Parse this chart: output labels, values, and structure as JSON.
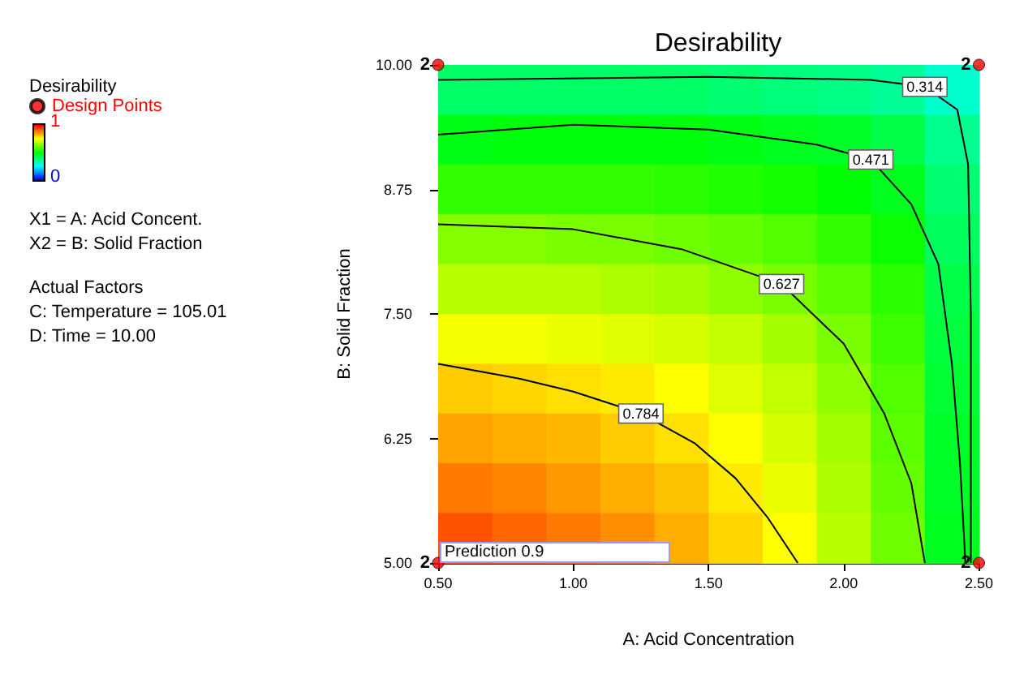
{
  "chart_data": {
    "type": "heatmap",
    "title": "Desirability",
    "xlabel": "A: Acid Concentration",
    "ylabel": "B: Solid Fraction",
    "clabel": "Desirability",
    "x": [
      0.6,
      0.8,
      1.0,
      1.2,
      1.4,
      1.6,
      1.8,
      2.0,
      2.2,
      2.4
    ],
    "cells": [
      [
        0.4,
        0.4,
        0.4,
        0.4,
        0.4,
        0.39,
        0.38,
        0.37,
        0.35,
        0.3
      ],
      [
        0.48,
        0.49,
        0.49,
        0.49,
        0.49,
        0.48,
        0.47,
        0.46,
        0.43,
        0.36
      ],
      [
        0.55,
        0.55,
        0.55,
        0.55,
        0.54,
        0.53,
        0.52,
        0.5,
        0.47,
        0.39
      ],
      [
        0.63,
        0.63,
        0.62,
        0.62,
        0.61,
        0.6,
        0.58,
        0.55,
        0.51,
        0.41
      ],
      [
        0.68,
        0.68,
        0.68,
        0.67,
        0.66,
        0.64,
        0.62,
        0.59,
        0.54,
        0.43
      ],
      [
        0.74,
        0.74,
        0.73,
        0.72,
        0.71,
        0.69,
        0.66,
        0.62,
        0.56,
        0.44
      ],
      [
        0.8,
        0.79,
        0.78,
        0.77,
        0.75,
        0.72,
        0.69,
        0.64,
        0.58,
        0.45
      ],
      [
        0.84,
        0.83,
        0.82,
        0.8,
        0.78,
        0.75,
        0.71,
        0.66,
        0.59,
        0.46
      ],
      [
        0.88,
        0.87,
        0.85,
        0.83,
        0.81,
        0.77,
        0.73,
        0.67,
        0.6,
        0.46
      ],
      [
        0.92,
        0.9,
        0.88,
        0.86,
        0.83,
        0.79,
        0.75,
        0.68,
        0.61,
        0.47
      ]
    ],
    "clim": [
      0,
      1
    ],
    "cticks": [
      0,
      1
    ],
    "xlim": [
      0.5,
      2.5
    ],
    "xticks": [
      {
        "value": 0.5,
        "label": "0.50"
      },
      {
        "value": 1,
        "label": "1.00"
      },
      {
        "value": 1.5,
        "label": "1.50"
      },
      {
        "value": 2,
        "label": "2.00"
      },
      {
        "value": 2.5,
        "label": "2.50"
      }
    ],
    "ylim": [
      5,
      10
    ],
    "yticks": [
      {
        "value": 5,
        "label": "5.00"
      },
      {
        "value": 6.25,
        "label": "6.25"
      },
      {
        "value": 7.5,
        "label": "7.50"
      },
      {
        "value": 8.75,
        "label": "8.75"
      },
      {
        "value": 10,
        "label": "10.00"
      }
    ],
    "series": [
      {
        "type": "line",
        "color": "#000000",
        "marker": "none",
        "x": [
          0.5,
          0.8,
          1.0,
          1.25,
          1.45,
          1.6,
          1.72,
          1.83
        ],
        "values": [
          7.0,
          6.85,
          6.72,
          6.5,
          6.2,
          5.85,
          5.45,
          5.0
        ]
      },
      {
        "type": "line",
        "color": "#000000",
        "marker": "none",
        "x": [
          0.5,
          1.0,
          1.4,
          1.77,
          2.0,
          2.15,
          2.25,
          2.3
        ],
        "values": [
          8.4,
          8.35,
          8.15,
          7.8,
          7.2,
          6.5,
          5.8,
          5.0
        ]
      },
      {
        "type": "line",
        "color": "#000000",
        "marker": "none",
        "x": [
          0.5,
          1.0,
          1.5,
          1.9,
          2.1,
          2.25,
          2.35,
          2.4,
          2.43,
          2.45
        ],
        "values": [
          9.3,
          9.4,
          9.35,
          9.2,
          9.05,
          8.6,
          8.0,
          7.0,
          6.0,
          5.0
        ]
      },
      {
        "type": "line",
        "color": "#000000",
        "marker": "none",
        "x": [
          0.5,
          1.5,
          2.1,
          2.3,
          2.42,
          2.46,
          2.47,
          2.47
        ],
        "values": [
          9.85,
          9.88,
          9.85,
          9.78,
          9.55,
          9.0,
          7.5,
          5.0
        ]
      },
      {
        "type": "scatter",
        "name": "Design Points",
        "color": "#ff0000",
        "marker": "circle",
        "x": [
          0.5,
          0.5,
          2.5,
          2.5
        ],
        "values": [
          10,
          5,
          10,
          5
        ]
      }
    ],
    "legend": "left",
    "annotations": [
      "X1 = A: Acid Concent.",
      "X2 = B: Solid Fraction",
      "Actual Factors",
      "C: Temperature = 105.01",
      "D: Time = 10.00",
      "Prediction 0.9",
      {
        "text": "0.314",
        "x": 2.3,
        "y": 9.78
      },
      {
        "text": "0.471",
        "x": 2.1,
        "y": 9.05
      },
      {
        "text": "0.627",
        "x": 1.77,
        "y": 7.8
      },
      {
        "text": "0.784",
        "x": 1.25,
        "y": 6.5
      },
      {
        "text": "2",
        "x": 0.5,
        "y": 10
      },
      {
        "text": "2",
        "x": 0.5,
        "y": 5
      },
      {
        "text": "2",
        "x": 2.5,
        "y": 10
      },
      {
        "text": "2",
        "x": 2.5,
        "y": 5
      }
    ]
  }
}
